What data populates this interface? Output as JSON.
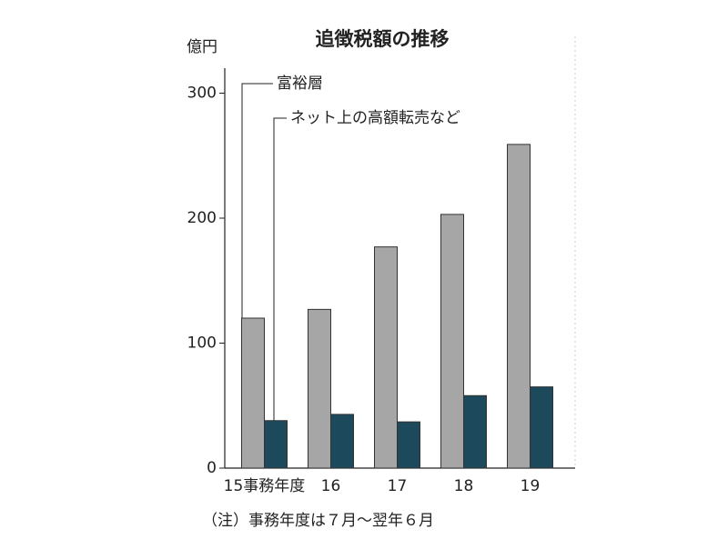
{
  "chart_data": {
    "type": "bar",
    "title": "追徴税額の推移",
    "y_unit": "億円",
    "note": "（注）事務年度は７月～翌年６月",
    "categories": [
      "15事務年度",
      "16",
      "17",
      "18",
      "19"
    ],
    "series": [
      {
        "name": "富裕層",
        "color": "#a6a6a6",
        "values": [
          120,
          127,
          177,
          203,
          259
        ]
      },
      {
        "name": "ネット上の高額転売など",
        "color": "#1c4a5c",
        "values": [
          38,
          43,
          37,
          58,
          65
        ]
      }
    ],
    "ylim": [
      0,
      320
    ],
    "yticks": [
      0,
      100,
      200,
      300
    ]
  }
}
